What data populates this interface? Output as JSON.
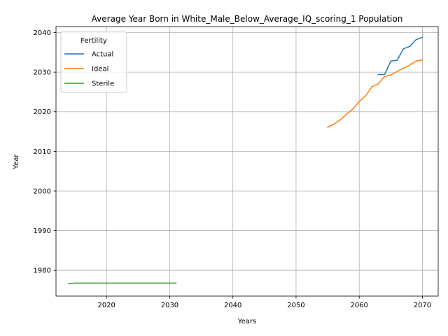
{
  "chart_data": {
    "type": "line",
    "title": "Average Year Born in White_Male_Below_Average_IQ_scoring_1 Population",
    "xlabel": "Years",
    "ylabel": "Year",
    "xlim": [
      2012,
      2072.5
    ],
    "ylim": [
      1973.5,
      2041.5
    ],
    "x_ticks": [
      2020,
      2030,
      2040,
      2050,
      2060,
      2070
    ],
    "y_ticks": [
      1980,
      1990,
      2000,
      2010,
      2020,
      2030,
      2040
    ],
    "grid": true,
    "legend": {
      "title": "Fertility",
      "placement": "upper-left"
    },
    "series": [
      {
        "name": "Actual",
        "color": "#1f77b4",
        "x": [
          2063,
          2064,
          2065,
          2066,
          2067,
          2068,
          2069,
          2070
        ],
        "y": [
          2029.4,
          2029.4,
          2032.8,
          2033.0,
          2035.9,
          2036.5,
          2038.2,
          2038.8
        ]
      },
      {
        "name": "Ideal",
        "color": "#ff7f0e",
        "x": [
          2055,
          2056,
          2057,
          2058,
          2059,
          2060,
          2061,
          2062,
          2063,
          2064,
          2065,
          2066,
          2067,
          2068,
          2069,
          2070
        ],
        "y": [
          2016.1,
          2016.9,
          2018.0,
          2019.4,
          2020.7,
          2022.6,
          2024.0,
          2026.3,
          2027.0,
          2028.9,
          2029.3,
          2030.2,
          2031.0,
          2031.8,
          2032.8,
          2033.1
        ]
      },
      {
        "name": "Sterile",
        "color": "#2ca02c",
        "x": [
          2014,
          2015,
          2016,
          2017,
          2018,
          2019,
          2020,
          2021,
          2022,
          2023,
          2024,
          2025,
          2026,
          2027,
          2028,
          2029,
          2030,
          2031
        ],
        "y": [
          1976.6,
          1976.8,
          1976.8,
          1976.8,
          1976.8,
          1976.8,
          1976.8,
          1976.8,
          1976.8,
          1976.8,
          1976.8,
          1976.8,
          1976.8,
          1976.8,
          1976.8,
          1976.8,
          1976.8,
          1976.8
        ]
      }
    ]
  }
}
